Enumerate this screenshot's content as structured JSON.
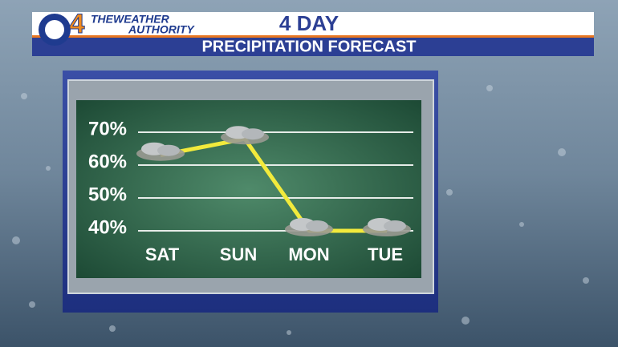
{
  "logo": {
    "number": "4",
    "line1": "THEWEATHER",
    "line2": "AUTHORITY"
  },
  "chart_data": {
    "type": "line",
    "title": "4 DAY",
    "subtitle": "PRECIPITATION FORECAST",
    "categories": [
      "SAT",
      "SUN",
      "MON",
      "TUE"
    ],
    "values": [
      63,
      68,
      40,
      40
    ],
    "color": "#f2ea3c",
    "ylim": [
      40,
      70
    ],
    "yticks": [
      {
        "value": 40,
        "label": "40%"
      },
      {
        "value": 50,
        "label": "50%"
      },
      {
        "value": 60,
        "label": "60%"
      },
      {
        "value": 70,
        "label": "70%"
      }
    ],
    "grid": true
  }
}
